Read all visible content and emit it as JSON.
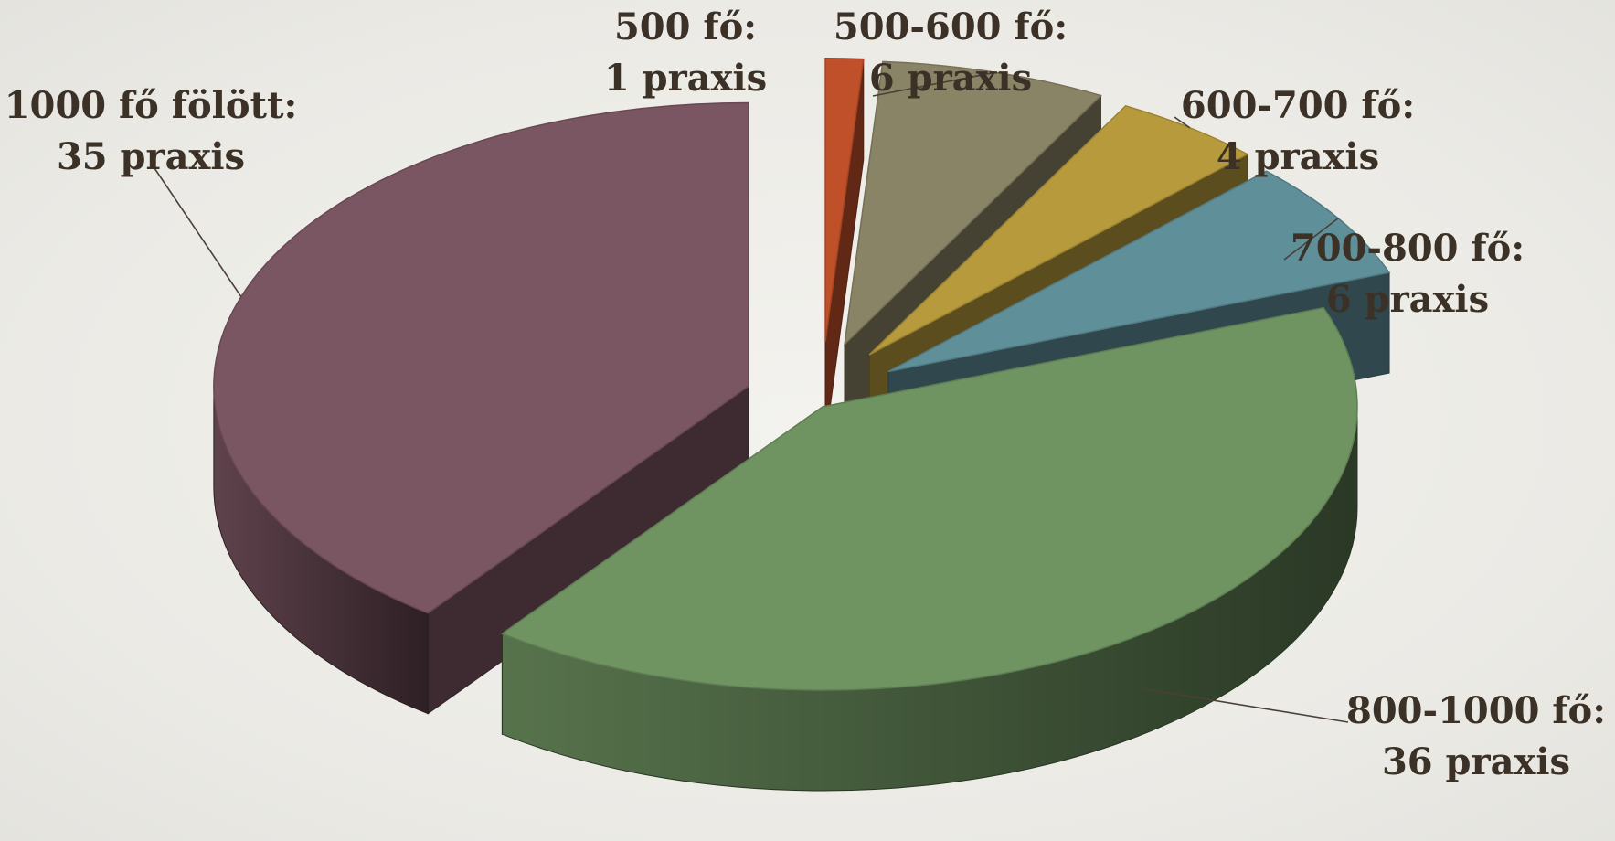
{
  "chart_data": {
    "type": "pie",
    "title": "",
    "legend": "none",
    "slices": [
      {
        "id": "500",
        "range_label": "500 fő:",
        "count_label": "1 praxis",
        "value": 1,
        "color": "#c0502a",
        "exploded": true
      },
      {
        "id": "500-600",
        "range_label": "500-600 fő:",
        "count_label": "6 praxis",
        "value": 6,
        "color": "#8a8466",
        "exploded": true
      },
      {
        "id": "600-700",
        "range_label": "600-700 fő:",
        "count_label": "4 praxis",
        "value": 4,
        "color": "#b79a3c",
        "exploded": true
      },
      {
        "id": "700-800",
        "range_label": "700-800 fő:",
        "count_label": "6 praxis",
        "value": 6,
        "color": "#5f8f99",
        "exploded": true
      },
      {
        "id": "800-1000",
        "range_label": "800-1000 fő:",
        "count_label": "36 praxis",
        "value": 36,
        "color": "#6f9462",
        "exploded": false
      },
      {
        "id": "1000-plus",
        "range_label": "1000 fő fölött:",
        "count_label": "35 praxis",
        "value": 35,
        "color": "#7a5562",
        "exploded": true
      }
    ]
  }
}
